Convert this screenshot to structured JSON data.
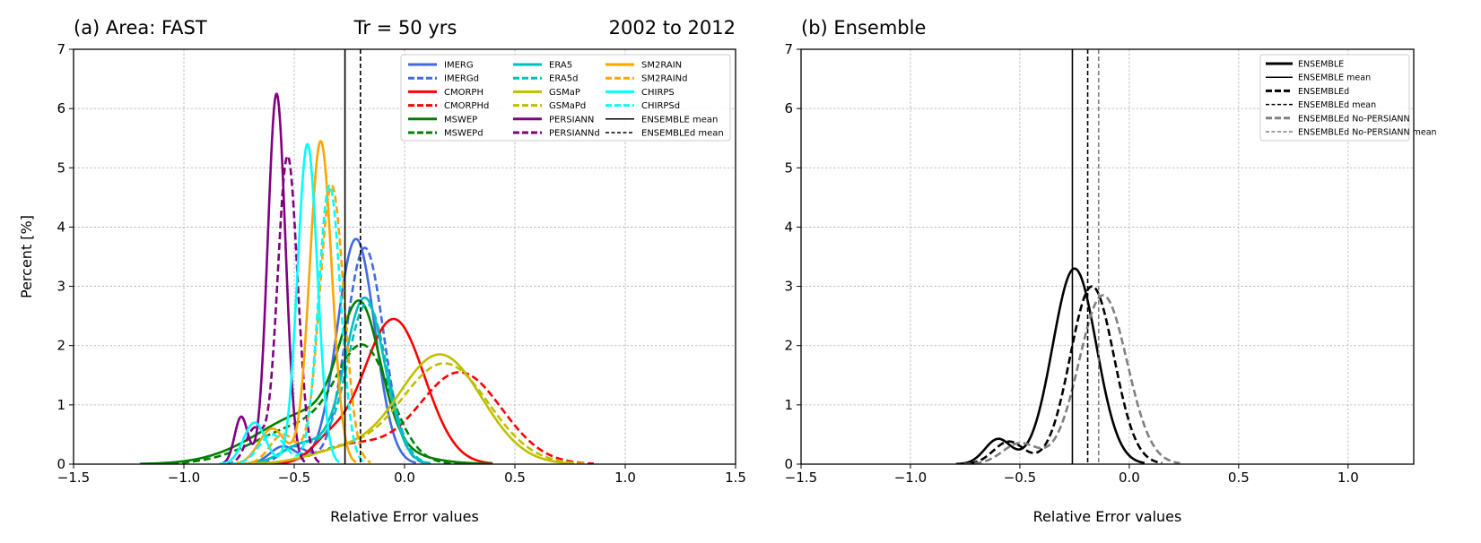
{
  "chart_data": [
    {
      "type": "line",
      "panel": "a",
      "title_left": "(a) Area: FAST",
      "title_center": "Tr = 50 yrs",
      "title_right": "2002 to 2012",
      "xlabel": "Relative Error values",
      "ylabel": "Percent [%]",
      "xlim": [
        -1.5,
        1.5
      ],
      "ylim": [
        0,
        7
      ],
      "xticks": [
        -1.5,
        -1.0,
        -0.5,
        0.0,
        0.5,
        1.0,
        1.5
      ],
      "xtick_labels": [
        "−1.5",
        "−1.0",
        "−0.5",
        "0.0",
        "0.5",
        "1.0",
        "1.5"
      ],
      "yticks": [
        0,
        1,
        2,
        3,
        4,
        5,
        6,
        7
      ],
      "ytick_labels": [
        "0",
        "1",
        "2",
        "3",
        "4",
        "5",
        "6",
        "7"
      ],
      "grid": true,
      "legend_position": "top-right",
      "legend_columns": 3,
      "series": [
        {
          "name": "IMERG",
          "color": "#4169e1",
          "dash": "solid",
          "components": [
            {
              "mu": -0.22,
              "sigma": 0.085,
              "peak": 3.8
            },
            {
              "mu": -0.55,
              "sigma": 0.06,
              "peak": 0.3
            }
          ]
        },
        {
          "name": "IMERGd",
          "color": "#4169e1",
          "dash": "dashed",
          "components": [
            {
              "mu": -0.18,
              "sigma": 0.085,
              "peak": 3.65
            },
            {
              "mu": -0.5,
              "sigma": 0.06,
              "peak": 0.3
            }
          ]
        },
        {
          "name": "CMORPH",
          "color": "#ff0000",
          "dash": "solid",
          "components": [
            {
              "mu": -0.05,
              "sigma": 0.14,
              "peak": 2.45
            },
            {
              "mu": -0.35,
              "sigma": 0.08,
              "peak": 0.3
            }
          ]
        },
        {
          "name": "CMORPHd",
          "color": "#ff0000",
          "dash": "dashed",
          "components": [
            {
              "mu": 0.25,
              "sigma": 0.19,
              "peak": 1.55
            },
            {
              "mu": -0.25,
              "sigma": 0.15,
              "peak": 0.3
            }
          ]
        },
        {
          "name": "MSWEP",
          "color": "#008000",
          "dash": "solid",
          "components": [
            {
              "mu": -0.2,
              "sigma": 0.09,
              "peak": 2.1
            },
            {
              "mu": -0.4,
              "sigma": 0.25,
              "peak": 0.9
            }
          ]
        },
        {
          "name": "MSWEPd",
          "color": "#008000",
          "dash": "dashed",
          "components": [
            {
              "mu": -0.18,
              "sigma": 0.12,
              "peak": 1.7
            },
            {
              "mu": -0.45,
              "sigma": 0.22,
              "peak": 0.65
            }
          ]
        },
        {
          "name": "ERA5",
          "color": "#00bfbf",
          "dash": "solid",
          "components": [
            {
              "mu": -0.18,
              "sigma": 0.09,
              "peak": 2.8
            },
            {
              "mu": -0.45,
              "sigma": 0.1,
              "peak": 0.35
            }
          ]
        },
        {
          "name": "ERA5d",
          "color": "#00bfbf",
          "dash": "dashed",
          "components": [
            {
              "mu": -0.17,
              "sigma": 0.09,
              "peak": 2.7
            },
            {
              "mu": -0.45,
              "sigma": 0.1,
              "peak": 0.35
            }
          ]
        },
        {
          "name": "GSMaP",
          "color": "#bfbf00",
          "dash": "solid",
          "components": [
            {
              "mu": 0.16,
              "sigma": 0.19,
              "peak": 1.85
            },
            {
              "mu": -0.3,
              "sigma": 0.15,
              "peak": 0.2
            }
          ]
        },
        {
          "name": "GSMaPd",
          "color": "#bfbf00",
          "dash": "dashed",
          "components": [
            {
              "mu": 0.18,
              "sigma": 0.2,
              "peak": 1.7
            },
            {
              "mu": -0.3,
              "sigma": 0.15,
              "peak": 0.2
            }
          ]
        },
        {
          "name": "PERSIANN",
          "color": "#800080",
          "dash": "solid",
          "components": [
            {
              "mu": -0.58,
              "sigma": 0.04,
              "peak": 6.25
            },
            {
              "mu": -0.74,
              "sigma": 0.03,
              "peak": 0.8
            }
          ]
        },
        {
          "name": "PERSIANNd",
          "color": "#800080",
          "dash": "dashed",
          "components": [
            {
              "mu": -0.53,
              "sigma": 0.045,
              "peak": 5.2
            },
            {
              "mu": -0.68,
              "sigma": 0.04,
              "peak": 0.6
            }
          ]
        },
        {
          "name": "SM2RAIN",
          "color": "#ffa500",
          "dash": "solid",
          "components": [
            {
              "mu": -0.38,
              "sigma": 0.05,
              "peak": 5.45
            },
            {
              "mu": -0.6,
              "sigma": 0.06,
              "peak": 0.6
            }
          ]
        },
        {
          "name": "SM2RAINd",
          "color": "#ffa500",
          "dash": "dashed",
          "components": [
            {
              "mu": -0.33,
              "sigma": 0.055,
              "peak": 4.7
            },
            {
              "mu": -0.55,
              "sigma": 0.06,
              "peak": 0.5
            }
          ]
        },
        {
          "name": "CHIRPS",
          "color": "#00ffff",
          "dash": "solid",
          "components": [
            {
              "mu": -0.44,
              "sigma": 0.045,
              "peak": 5.4
            },
            {
              "mu": -0.68,
              "sigma": 0.05,
              "peak": 0.7
            }
          ]
        },
        {
          "name": "CHIRPSd",
          "color": "#00ffff",
          "dash": "dashed",
          "components": [
            {
              "mu": -0.34,
              "sigma": 0.05,
              "peak": 4.7
            },
            {
              "mu": -0.6,
              "sigma": 0.06,
              "peak": 0.5
            }
          ]
        }
      ],
      "vlines": [
        {
          "name": "ENSEMBLE mean",
          "x": -0.27,
          "color": "#000000",
          "dash": "solid"
        },
        {
          "name": "ENSEMBLEd mean",
          "x": -0.2,
          "color": "#000000",
          "dash": "dashed"
        }
      ]
    },
    {
      "type": "line",
      "panel": "b",
      "title_left": "(b) Ensemble",
      "xlabel": "Relative Error values",
      "xlim": [
        -1.5,
        1.3
      ],
      "ylim": [
        0,
        7
      ],
      "xticks": [
        -1.5,
        -1.0,
        -0.5,
        0.0,
        0.5,
        1.0
      ],
      "xtick_labels": [
        "−1.5",
        "−1.0",
        "−0.5",
        "0.0",
        "0.5",
        "1.0"
      ],
      "yticks": [
        0,
        1,
        2,
        3,
        4,
        5,
        6,
        7
      ],
      "ytick_labels": [
        "0",
        "1",
        "2",
        "3",
        "4",
        "5",
        "6",
        "7"
      ],
      "grid": true,
      "legend_position": "top-right",
      "legend_columns": 1,
      "series": [
        {
          "name": "ENSEMBLE",
          "color": "#000000",
          "dash": "solid",
          "components": [
            {
              "mu": -0.25,
              "sigma": 0.1,
              "peak": 3.3
            },
            {
              "mu": -0.6,
              "sigma": 0.06,
              "peak": 0.42
            }
          ]
        },
        {
          "name": "ENSEMBLEd",
          "color": "#000000",
          "dash": "dashed",
          "components": [
            {
              "mu": -0.17,
              "sigma": 0.1,
              "peak": 3.0
            },
            {
              "mu": -0.55,
              "sigma": 0.07,
              "peak": 0.38
            }
          ]
        },
        {
          "name": "ENSEMBLEd No-PERSIANN",
          "color": "#808080",
          "dash": "dashed",
          "components": [
            {
              "mu": -0.12,
              "sigma": 0.11,
              "peak": 2.85
            },
            {
              "mu": -0.5,
              "sigma": 0.08,
              "peak": 0.35
            }
          ]
        }
      ],
      "vlines": [
        {
          "name": "ENSEMBLE mean",
          "x": -0.26,
          "color": "#000000",
          "dash": "solid"
        },
        {
          "name": "ENSEMBLEd mean",
          "x": -0.19,
          "color": "#000000",
          "dash": "dashed"
        },
        {
          "name": "ENSEMBLEd No-PERSIANN mean",
          "x": -0.14,
          "color": "#808080",
          "dash": "dashed"
        }
      ],
      "legend_entries": [
        {
          "name": "ENSEMBLE",
          "color": "#000000",
          "dash": "solid",
          "width": 3
        },
        {
          "name": "ENSEMBLE mean",
          "color": "#000000",
          "dash": "solid",
          "width": 1.5
        },
        {
          "name": "ENSEMBLEd",
          "color": "#000000",
          "dash": "dashed",
          "width": 3
        },
        {
          "name": "ENSEMBLEd mean",
          "color": "#000000",
          "dash": "dashed",
          "width": 1.5
        },
        {
          "name": "ENSEMBLEd No-PERSIANN",
          "color": "#808080",
          "dash": "dashed",
          "width": 3
        },
        {
          "name": "ENSEMBLEd No-PERSIANN mean",
          "color": "#808080",
          "dash": "dashed",
          "width": 1.5
        }
      ]
    }
  ]
}
